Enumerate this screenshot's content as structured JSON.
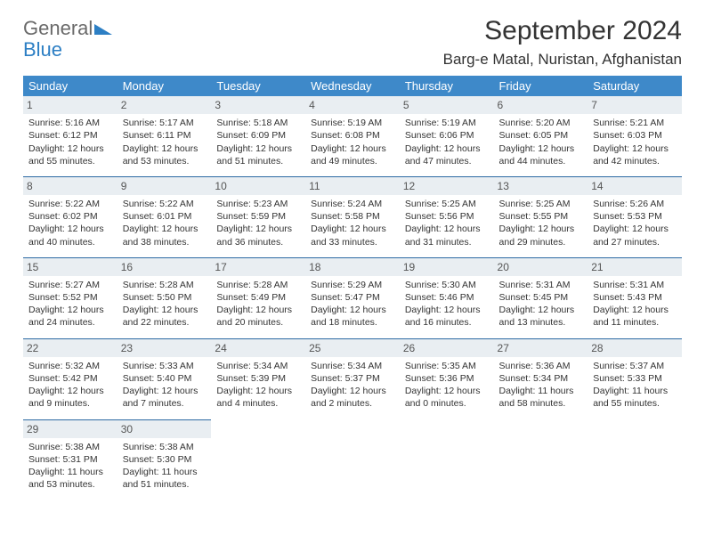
{
  "logo": {
    "word1": "General",
    "word2": "Blue",
    "tri_color": "#2d7fc4"
  },
  "title": "September 2024",
  "location": "Barg-e Matal, Nuristan, Afghanistan",
  "colors": {
    "header_bg": "#3e89c9",
    "header_text": "#ffffff",
    "daynum_bg": "#e9eef2",
    "row_divider": "#2d6aa3",
    "text": "#333333"
  },
  "typography": {
    "title_fontsize": 30,
    "location_fontsize": 17,
    "weekday_fontsize": 13,
    "cell_fontsize": 10.5,
    "font_family": "Arial"
  },
  "weekdays": [
    "Sunday",
    "Monday",
    "Tuesday",
    "Wednesday",
    "Thursday",
    "Friday",
    "Saturday"
  ],
  "cells": [
    {
      "day": "1",
      "sunrise": "Sunrise: 5:16 AM",
      "sunset": "Sunset: 6:12 PM",
      "daylight": "Daylight: 12 hours and 55 minutes."
    },
    {
      "day": "2",
      "sunrise": "Sunrise: 5:17 AM",
      "sunset": "Sunset: 6:11 PM",
      "daylight": "Daylight: 12 hours and 53 minutes."
    },
    {
      "day": "3",
      "sunrise": "Sunrise: 5:18 AM",
      "sunset": "Sunset: 6:09 PM",
      "daylight": "Daylight: 12 hours and 51 minutes."
    },
    {
      "day": "4",
      "sunrise": "Sunrise: 5:19 AM",
      "sunset": "Sunset: 6:08 PM",
      "daylight": "Daylight: 12 hours and 49 minutes."
    },
    {
      "day": "5",
      "sunrise": "Sunrise: 5:19 AM",
      "sunset": "Sunset: 6:06 PM",
      "daylight": "Daylight: 12 hours and 47 minutes."
    },
    {
      "day": "6",
      "sunrise": "Sunrise: 5:20 AM",
      "sunset": "Sunset: 6:05 PM",
      "daylight": "Daylight: 12 hours and 44 minutes."
    },
    {
      "day": "7",
      "sunrise": "Sunrise: 5:21 AM",
      "sunset": "Sunset: 6:03 PM",
      "daylight": "Daylight: 12 hours and 42 minutes."
    },
    {
      "day": "8",
      "sunrise": "Sunrise: 5:22 AM",
      "sunset": "Sunset: 6:02 PM",
      "daylight": "Daylight: 12 hours and 40 minutes."
    },
    {
      "day": "9",
      "sunrise": "Sunrise: 5:22 AM",
      "sunset": "Sunset: 6:01 PM",
      "daylight": "Daylight: 12 hours and 38 minutes."
    },
    {
      "day": "10",
      "sunrise": "Sunrise: 5:23 AM",
      "sunset": "Sunset: 5:59 PM",
      "daylight": "Daylight: 12 hours and 36 minutes."
    },
    {
      "day": "11",
      "sunrise": "Sunrise: 5:24 AM",
      "sunset": "Sunset: 5:58 PM",
      "daylight": "Daylight: 12 hours and 33 minutes."
    },
    {
      "day": "12",
      "sunrise": "Sunrise: 5:25 AM",
      "sunset": "Sunset: 5:56 PM",
      "daylight": "Daylight: 12 hours and 31 minutes."
    },
    {
      "day": "13",
      "sunrise": "Sunrise: 5:25 AM",
      "sunset": "Sunset: 5:55 PM",
      "daylight": "Daylight: 12 hours and 29 minutes."
    },
    {
      "day": "14",
      "sunrise": "Sunrise: 5:26 AM",
      "sunset": "Sunset: 5:53 PM",
      "daylight": "Daylight: 12 hours and 27 minutes."
    },
    {
      "day": "15",
      "sunrise": "Sunrise: 5:27 AM",
      "sunset": "Sunset: 5:52 PM",
      "daylight": "Daylight: 12 hours and 24 minutes."
    },
    {
      "day": "16",
      "sunrise": "Sunrise: 5:28 AM",
      "sunset": "Sunset: 5:50 PM",
      "daylight": "Daylight: 12 hours and 22 minutes."
    },
    {
      "day": "17",
      "sunrise": "Sunrise: 5:28 AM",
      "sunset": "Sunset: 5:49 PM",
      "daylight": "Daylight: 12 hours and 20 minutes."
    },
    {
      "day": "18",
      "sunrise": "Sunrise: 5:29 AM",
      "sunset": "Sunset: 5:47 PM",
      "daylight": "Daylight: 12 hours and 18 minutes."
    },
    {
      "day": "19",
      "sunrise": "Sunrise: 5:30 AM",
      "sunset": "Sunset: 5:46 PM",
      "daylight": "Daylight: 12 hours and 16 minutes."
    },
    {
      "day": "20",
      "sunrise": "Sunrise: 5:31 AM",
      "sunset": "Sunset: 5:45 PM",
      "daylight": "Daylight: 12 hours and 13 minutes."
    },
    {
      "day": "21",
      "sunrise": "Sunrise: 5:31 AM",
      "sunset": "Sunset: 5:43 PM",
      "daylight": "Daylight: 12 hours and 11 minutes."
    },
    {
      "day": "22",
      "sunrise": "Sunrise: 5:32 AM",
      "sunset": "Sunset: 5:42 PM",
      "daylight": "Daylight: 12 hours and 9 minutes."
    },
    {
      "day": "23",
      "sunrise": "Sunrise: 5:33 AM",
      "sunset": "Sunset: 5:40 PM",
      "daylight": "Daylight: 12 hours and 7 minutes."
    },
    {
      "day": "24",
      "sunrise": "Sunrise: 5:34 AM",
      "sunset": "Sunset: 5:39 PM",
      "daylight": "Daylight: 12 hours and 4 minutes."
    },
    {
      "day": "25",
      "sunrise": "Sunrise: 5:34 AM",
      "sunset": "Sunset: 5:37 PM",
      "daylight": "Daylight: 12 hours and 2 minutes."
    },
    {
      "day": "26",
      "sunrise": "Sunrise: 5:35 AM",
      "sunset": "Sunset: 5:36 PM",
      "daylight": "Daylight: 12 hours and 0 minutes."
    },
    {
      "day": "27",
      "sunrise": "Sunrise: 5:36 AM",
      "sunset": "Sunset: 5:34 PM",
      "daylight": "Daylight: 11 hours and 58 minutes."
    },
    {
      "day": "28",
      "sunrise": "Sunrise: 5:37 AM",
      "sunset": "Sunset: 5:33 PM",
      "daylight": "Daylight: 11 hours and 55 minutes."
    },
    {
      "day": "29",
      "sunrise": "Sunrise: 5:38 AM",
      "sunset": "Sunset: 5:31 PM",
      "daylight": "Daylight: 11 hours and 53 minutes."
    },
    {
      "day": "30",
      "sunrise": "Sunrise: 5:38 AM",
      "sunset": "Sunset: 5:30 PM",
      "daylight": "Daylight: 11 hours and 51 minutes."
    }
  ]
}
